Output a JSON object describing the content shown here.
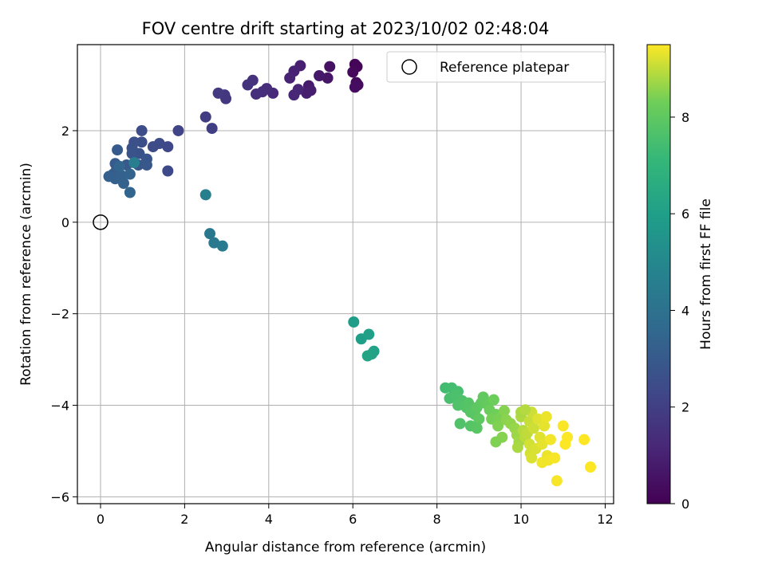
{
  "chart_data": {
    "type": "scatter",
    "title": "FOV centre drift starting at 2023/10/02 02:48:04",
    "xlabel": "Angular distance from reference (arcmin)",
    "ylabel": "Rotation from reference (arcmin)",
    "xlim": [
      -0.55,
      12.2
    ],
    "ylim": [
      -6.15,
      3.88
    ],
    "xticks": [
      0,
      2,
      4,
      6,
      8,
      10,
      12
    ],
    "yticks": [
      -6,
      -4,
      -2,
      0,
      2
    ],
    "grid": true,
    "legend": {
      "position": "top-right",
      "entries": [
        "Reference platepar"
      ]
    },
    "reference_point": {
      "x": 0,
      "y": 0
    },
    "colorbar": {
      "label": "Hours from first FF file",
      "min": 0,
      "max": 9.5,
      "ticks": [
        0,
        2,
        4,
        6,
        8
      ],
      "colormap": "viridis"
    },
    "points": [
      {
        "x": 6.05,
        "y": 3.45,
        "t": 0.1
      },
      {
        "x": 6.1,
        "y": 3.4,
        "t": 0.15
      },
      {
        "x": 6.0,
        "y": 3.28,
        "t": 0.2
      },
      {
        "x": 6.08,
        "y": 3.05,
        "t": 0.25
      },
      {
        "x": 6.12,
        "y": 3.0,
        "t": 0.3
      },
      {
        "x": 6.05,
        "y": 2.95,
        "t": 0.35
      },
      {
        "x": 5.45,
        "y": 3.4,
        "t": 0.5
      },
      {
        "x": 5.4,
        "y": 3.15,
        "t": 0.6
      },
      {
        "x": 5.2,
        "y": 3.2,
        "t": 0.7
      },
      {
        "x": 4.95,
        "y": 2.98,
        "t": 0.8
      },
      {
        "x": 5.0,
        "y": 2.88,
        "t": 0.85
      },
      {
        "x": 4.9,
        "y": 2.82,
        "t": 0.9
      },
      {
        "x": 4.75,
        "y": 3.42,
        "t": 0.95
      },
      {
        "x": 4.6,
        "y": 3.3,
        "t": 1.0
      },
      {
        "x": 4.5,
        "y": 3.15,
        "t": 1.05
      },
      {
        "x": 4.7,
        "y": 2.9,
        "t": 1.1
      },
      {
        "x": 4.6,
        "y": 2.78,
        "t": 1.15
      },
      {
        "x": 4.1,
        "y": 2.82,
        "t": 1.3
      },
      {
        "x": 3.95,
        "y": 2.92,
        "t": 1.35
      },
      {
        "x": 3.85,
        "y": 2.85,
        "t": 1.4
      },
      {
        "x": 3.7,
        "y": 2.8,
        "t": 1.45
      },
      {
        "x": 3.62,
        "y": 3.1,
        "t": 1.5
      },
      {
        "x": 3.5,
        "y": 3.0,
        "t": 1.55
      },
      {
        "x": 2.95,
        "y": 2.78,
        "t": 1.7
      },
      {
        "x": 2.98,
        "y": 2.7,
        "t": 1.75
      },
      {
        "x": 2.8,
        "y": 2.82,
        "t": 1.8
      },
      {
        "x": 2.5,
        "y": 2.3,
        "t": 1.9
      },
      {
        "x": 2.65,
        "y": 2.05,
        "t": 2.0
      },
      {
        "x": 1.85,
        "y": 2.0,
        "t": 2.2
      },
      {
        "x": 1.6,
        "y": 1.65,
        "t": 2.3
      },
      {
        "x": 1.6,
        "y": 1.12,
        "t": 2.35
      },
      {
        "x": 1.4,
        "y": 1.72,
        "t": 2.4
      },
      {
        "x": 1.25,
        "y": 1.65,
        "t": 2.45
      },
      {
        "x": 0.98,
        "y": 2.0,
        "t": 2.5
      },
      {
        "x": 0.98,
        "y": 1.75,
        "t": 2.55
      },
      {
        "x": 0.8,
        "y": 1.75,
        "t": 2.6
      },
      {
        "x": 0.75,
        "y": 1.62,
        "t": 2.65
      },
      {
        "x": 0.92,
        "y": 1.5,
        "t": 2.7
      },
      {
        "x": 0.75,
        "y": 1.5,
        "t": 2.75
      },
      {
        "x": 1.1,
        "y": 1.38,
        "t": 2.8
      },
      {
        "x": 0.9,
        "y": 1.25,
        "t": 2.85
      },
      {
        "x": 1.1,
        "y": 1.25,
        "t": 2.9
      },
      {
        "x": 0.62,
        "y": 1.25,
        "t": 2.95
      },
      {
        "x": 0.4,
        "y": 1.58,
        "t": 3.0
      },
      {
        "x": 0.35,
        "y": 1.28,
        "t": 3.05
      },
      {
        "x": 0.38,
        "y": 1.15,
        "t": 3.1
      },
      {
        "x": 0.3,
        "y": 1.05,
        "t": 3.15
      },
      {
        "x": 0.2,
        "y": 1.0,
        "t": 3.2
      },
      {
        "x": 0.35,
        "y": 0.95,
        "t": 3.25
      },
      {
        "x": 0.5,
        "y": 1.02,
        "t": 3.3
      },
      {
        "x": 0.55,
        "y": 0.85,
        "t": 3.35
      },
      {
        "x": 0.7,
        "y": 1.05,
        "t": 3.4
      },
      {
        "x": 0.7,
        "y": 0.65,
        "t": 3.45
      },
      {
        "x": 0.45,
        "y": 1.22,
        "t": 3.5
      },
      {
        "x": 0.8,
        "y": 1.3,
        "t": 4.5
      },
      {
        "x": 2.5,
        "y": 0.6,
        "t": 4.6
      },
      {
        "x": 2.6,
        "y": -0.25,
        "t": 4.3
      },
      {
        "x": 2.7,
        "y": -0.45,
        "t": 4.35
      },
      {
        "x": 2.9,
        "y": -0.52,
        "t": 4.4
      },
      {
        "x": 6.02,
        "y": -2.18,
        "t": 5.9
      },
      {
        "x": 6.2,
        "y": -2.55,
        "t": 6.0
      },
      {
        "x": 6.38,
        "y": -2.45,
        "t": 6.05
      },
      {
        "x": 6.5,
        "y": -2.82,
        "t": 6.1
      },
      {
        "x": 6.45,
        "y": -2.88,
        "t": 6.15
      },
      {
        "x": 6.35,
        "y": -2.92,
        "t": 6.2
      },
      {
        "x": 8.2,
        "y": -3.62,
        "t": 7.4
      },
      {
        "x": 8.35,
        "y": -3.62,
        "t": 7.45
      },
      {
        "x": 8.5,
        "y": -3.7,
        "t": 7.5
      },
      {
        "x": 8.3,
        "y": -3.85,
        "t": 7.55
      },
      {
        "x": 8.45,
        "y": -3.78,
        "t": 7.6
      },
      {
        "x": 8.6,
        "y": -3.9,
        "t": 7.65
      },
      {
        "x": 8.5,
        "y": -4.0,
        "t": 7.7
      },
      {
        "x": 8.7,
        "y": -4.05,
        "t": 7.75
      },
      {
        "x": 8.75,
        "y": -3.95,
        "t": 7.8
      },
      {
        "x": 8.8,
        "y": -4.15,
        "t": 7.85
      },
      {
        "x": 8.9,
        "y": -4.2,
        "t": 7.9
      },
      {
        "x": 8.95,
        "y": -4.05,
        "t": 7.95
      },
      {
        "x": 9.05,
        "y": -3.95,
        "t": 8.0
      },
      {
        "x": 9.1,
        "y": -3.82,
        "t": 8.05
      },
      {
        "x": 9.2,
        "y": -3.98,
        "t": 8.1
      },
      {
        "x": 9.0,
        "y": -4.3,
        "t": 8.0
      },
      {
        "x": 8.55,
        "y": -4.4,
        "t": 7.7
      },
      {
        "x": 8.8,
        "y": -4.45,
        "t": 7.8
      },
      {
        "x": 8.95,
        "y": -4.5,
        "t": 7.9
      },
      {
        "x": 9.25,
        "y": -4.1,
        "t": 8.2
      },
      {
        "x": 9.35,
        "y": -3.88,
        "t": 8.25
      },
      {
        "x": 9.4,
        "y": -4.2,
        "t": 8.3
      },
      {
        "x": 9.3,
        "y": -4.3,
        "t": 8.35
      },
      {
        "x": 9.5,
        "y": -4.28,
        "t": 8.4
      },
      {
        "x": 9.45,
        "y": -4.45,
        "t": 8.45
      },
      {
        "x": 9.6,
        "y": -4.12,
        "t": 8.5
      },
      {
        "x": 9.65,
        "y": -4.32,
        "t": 8.55
      },
      {
        "x": 9.55,
        "y": -4.7,
        "t": 8.5
      },
      {
        "x": 9.4,
        "y": -4.8,
        "t": 8.45
      },
      {
        "x": 9.75,
        "y": -4.4,
        "t": 8.6
      },
      {
        "x": 9.85,
        "y": -4.5,
        "t": 8.65
      },
      {
        "x": 9.9,
        "y": -4.65,
        "t": 8.7
      },
      {
        "x": 9.95,
        "y": -4.8,
        "t": 8.75
      },
      {
        "x": 9.92,
        "y": -4.92,
        "t": 8.8
      },
      {
        "x": 10.0,
        "y": -4.25,
        "t": 8.85
      },
      {
        "x": 10.05,
        "y": -4.55,
        "t": 8.9
      },
      {
        "x": 10.1,
        "y": -4.7,
        "t": 8.95
      },
      {
        "x": 10.15,
        "y": -4.6,
        "t": 9.0
      },
      {
        "x": 10.2,
        "y": -4.35,
        "t": 9.05
      },
      {
        "x": 10.25,
        "y": -4.15,
        "t": 9.1
      },
      {
        "x": 10.3,
        "y": -4.5,
        "t": 9.1
      },
      {
        "x": 10.2,
        "y": -4.85,
        "t": 9.15
      },
      {
        "x": 10.22,
        "y": -5.05,
        "t": 9.15
      },
      {
        "x": 10.25,
        "y": -5.15,
        "t": 9.2
      },
      {
        "x": 10.35,
        "y": -4.95,
        "t": 9.2
      },
      {
        "x": 10.4,
        "y": -4.3,
        "t": 9.25
      },
      {
        "x": 10.45,
        "y": -4.7,
        "t": 9.25
      },
      {
        "x": 10.5,
        "y": -4.85,
        "t": 9.3
      },
      {
        "x": 10.55,
        "y": -4.45,
        "t": 9.3
      },
      {
        "x": 10.6,
        "y": -4.25,
        "t": 9.35
      },
      {
        "x": 10.62,
        "y": -5.1,
        "t": 9.35
      },
      {
        "x": 10.5,
        "y": -5.25,
        "t": 9.4
      },
      {
        "x": 10.65,
        "y": -5.2,
        "t": 9.4
      },
      {
        "x": 10.7,
        "y": -4.75,
        "t": 9.42
      },
      {
        "x": 10.8,
        "y": -5.15,
        "t": 9.45
      },
      {
        "x": 10.85,
        "y": -5.65,
        "t": 9.45
      },
      {
        "x": 11.0,
        "y": -4.45,
        "t": 9.47
      },
      {
        "x": 11.05,
        "y": -4.85,
        "t": 9.48
      },
      {
        "x": 11.1,
        "y": -4.7,
        "t": 9.49
      },
      {
        "x": 11.5,
        "y": -4.75,
        "t": 9.5
      },
      {
        "x": 11.65,
        "y": -5.35,
        "t": 9.5
      },
      {
        "x": 10.0,
        "y": -4.15,
        "t": 8.8
      },
      {
        "x": 10.1,
        "y": -4.1,
        "t": 8.9
      }
    ]
  }
}
